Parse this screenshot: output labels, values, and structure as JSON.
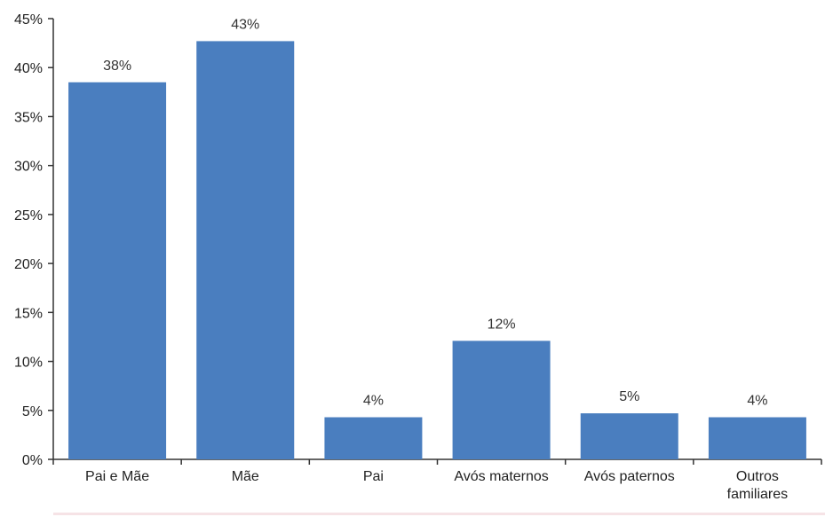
{
  "chart_data": {
    "type": "bar",
    "title": "",
    "xlabel": "",
    "ylabel": "",
    "categories": [
      "Pai e Mãe",
      "Mãe",
      "Pai",
      "Avós maternos",
      "Avós paternos",
      "Outros familiares"
    ],
    "values": [
      38.5,
      42.7,
      4.3,
      12.1,
      4.7,
      4.3
    ],
    "data_labels": [
      "38%",
      "43%",
      "4%",
      "12%",
      "5%",
      "4%"
    ],
    "ylim": [
      0,
      45
    ],
    "yticks": [
      0,
      5,
      10,
      15,
      20,
      25,
      30,
      35,
      40,
      45
    ],
    "ytick_labels": [
      "0%",
      "5%",
      "10%",
      "15%",
      "20%",
      "25%",
      "30%",
      "35%",
      "40%",
      "45%"
    ],
    "grid": false,
    "legend": "none",
    "bar_color": "#4a7ebf"
  }
}
